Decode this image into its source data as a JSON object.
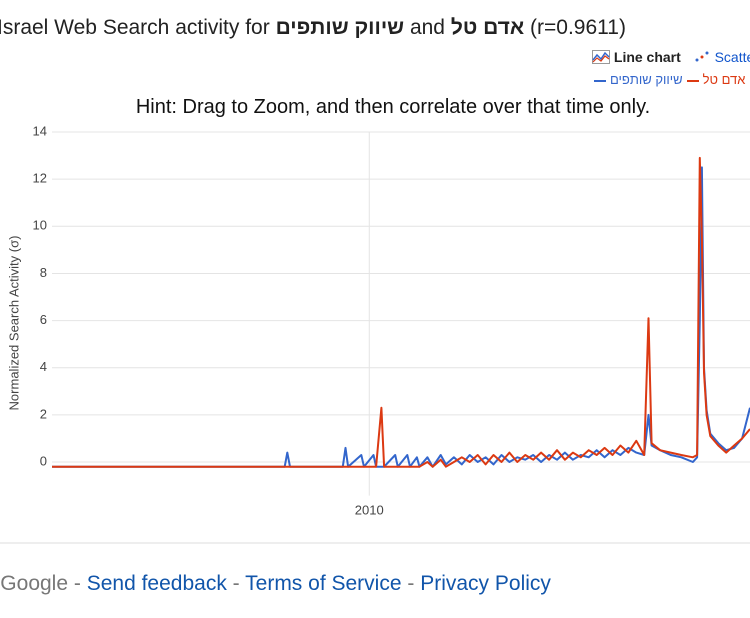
{
  "header": {
    "title_prefix": "Israel Web Search activity for",
    "term_one": "שיווק שותפים",
    "joiner": "and",
    "term_two": "אדם טל",
    "correlation": "(r=0.9611)"
  },
  "views": {
    "line": "Line chart",
    "scatter": "Scatter plot"
  },
  "hint": "Hint: Drag to Zoom, and then correlate over that time only.",
  "chart_data": {
    "type": "line",
    "ylabel": "Normalized Search Activity (σ)",
    "x": [
      2004.0,
      2008.4,
      2008.45,
      2008.5,
      2009.5,
      2009.55,
      2009.6,
      2009.85,
      2009.9,
      2010.08,
      2010.13,
      2010.23,
      2010.28,
      2010.49,
      2010.54,
      2010.72,
      2010.77,
      2010.9,
      2010.95,
      2011.1,
      2011.2,
      2011.35,
      2011.45,
      2011.6,
      2011.75,
      2011.9,
      2012.05,
      2012.2,
      2012.35,
      2012.5,
      2012.65,
      2012.8,
      2012.95,
      2013.1,
      2013.25,
      2013.4,
      2013.55,
      2013.7,
      2013.85,
      2014.0,
      2014.15,
      2014.3,
      2014.45,
      2014.6,
      2014.75,
      2014.9,
      2015.05,
      2015.2,
      2015.28,
      2015.34,
      2015.5,
      2015.7,
      2015.9,
      2016.12,
      2016.2,
      2016.25,
      2016.29,
      2016.33,
      2016.38,
      2016.45,
      2016.6,
      2016.75,
      2016.9,
      2017.05,
      2017.2
    ],
    "series": [
      {
        "name": "שיווק שותפים",
        "color": "#3366cc",
        "values": [
          -0.2,
          -0.2,
          0.4,
          -0.2,
          -0.2,
          0.6,
          -0.2,
          0.3,
          -0.2,
          0.3,
          -0.2,
          -0.2,
          -0.2,
          0.3,
          -0.2,
          0.3,
          -0.2,
          0.2,
          -0.2,
          0.2,
          -0.2,
          0.3,
          -0.1,
          0.2,
          -0.1,
          0.3,
          0.0,
          0.2,
          -0.1,
          0.3,
          0.0,
          0.2,
          0.1,
          0.3,
          0.0,
          0.3,
          0.1,
          0.4,
          0.1,
          0.3,
          0.2,
          0.5,
          0.2,
          0.5,
          0.3,
          0.6,
          0.4,
          0.3,
          2.0,
          0.7,
          0.5,
          0.3,
          0.2,
          0.0,
          0.2,
          6.0,
          12.5,
          4.0,
          2.2,
          1.2,
          0.8,
          0.5,
          0.6,
          1.0,
          2.3
        ]
      },
      {
        "name": "אדם טל",
        "color": "#dc3912",
        "values": [
          -0.2,
          -0.2,
          -0.2,
          -0.2,
          -0.2,
          -0.2,
          -0.2,
          -0.2,
          -0.2,
          -0.2,
          -0.2,
          2.3,
          -0.2,
          -0.2,
          -0.2,
          -0.2,
          -0.2,
          -0.2,
          -0.2,
          0.0,
          -0.2,
          0.1,
          -0.2,
          0.0,
          0.2,
          0.0,
          0.3,
          -0.1,
          0.3,
          0.0,
          0.4,
          0.0,
          0.3,
          0.1,
          0.4,
          0.1,
          0.5,
          0.1,
          0.4,
          0.2,
          0.5,
          0.3,
          0.6,
          0.3,
          0.7,
          0.4,
          0.9,
          0.3,
          6.1,
          0.8,
          0.5,
          0.4,
          0.3,
          0.2,
          0.3,
          12.9,
          9.5,
          3.8,
          2.0,
          1.1,
          0.7,
          0.4,
          0.7,
          1.0,
          1.4
        ]
      }
    ],
    "xlim": [
      2004.0,
      2017.2
    ],
    "xticks": [
      2010
    ],
    "ylim": [
      -1,
      14
    ],
    "yticks": [
      0,
      2,
      4,
      6,
      8,
      10,
      12,
      14
    ],
    "grid": true
  },
  "footer": {
    "brand": "© Google",
    "sep": "-",
    "links": [
      "Send feedback",
      "Terms of Service",
      "Privacy Policy"
    ]
  }
}
